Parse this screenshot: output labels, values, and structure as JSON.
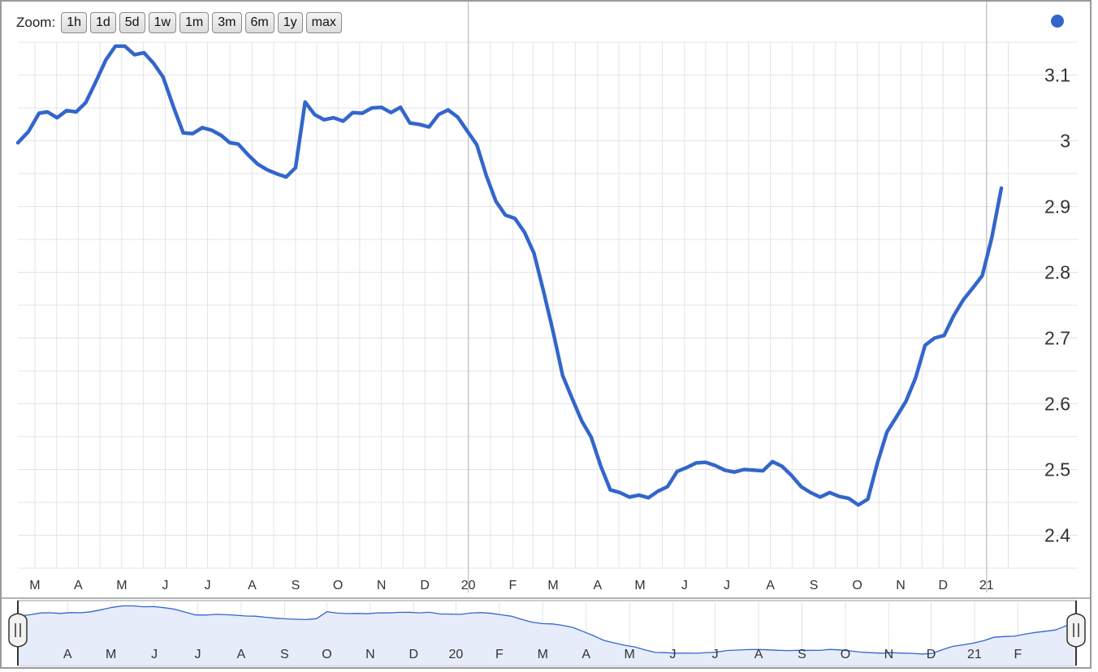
{
  "zoom": {
    "label": "Zoom:",
    "buttons": [
      "1h",
      "1d",
      "5d",
      "1w",
      "1m",
      "3m",
      "6m",
      "1y",
      "max"
    ]
  },
  "colors": {
    "line": "#3366cc",
    "grid": "#e4e4e4",
    "nav_fill": "#e6ecfa",
    "border": "#9a9a9a"
  },
  "chart_data": {
    "type": "line",
    "ylim": [
      2.35,
      3.15
    ],
    "yticks": [
      3.1,
      3,
      2.9,
      2.8,
      2.7,
      2.6,
      2.5,
      2.4
    ],
    "ytick_labels": [
      "3.1",
      "3",
      "2.9",
      "2.8",
      "2.7",
      "2.6",
      "2.5",
      "2.4"
    ],
    "xticks": [
      {
        "label": "M",
        "t": 0.016
      },
      {
        "label": "A",
        "t": 0.057
      },
      {
        "label": "M",
        "t": 0.098
      },
      {
        "label": "J",
        "t": 0.139
      },
      {
        "label": "J",
        "t": 0.179
      },
      {
        "label": "A",
        "t": 0.221
      },
      {
        "label": "S",
        "t": 0.262
      },
      {
        "label": "O",
        "t": 0.302
      },
      {
        "label": "N",
        "t": 0.343
      },
      {
        "label": "D",
        "t": 0.384
      },
      {
        "label": "20",
        "t": 0.425
      },
      {
        "label": "F",
        "t": 0.467
      },
      {
        "label": "M",
        "t": 0.505
      },
      {
        "label": "A",
        "t": 0.547
      },
      {
        "label": "M",
        "t": 0.587
      },
      {
        "label": "J",
        "t": 0.629
      },
      {
        "label": "J",
        "t": 0.669
      },
      {
        "label": "A",
        "t": 0.71
      },
      {
        "label": "S",
        "t": 0.751
      },
      {
        "label": "O",
        "t": 0.792
      },
      {
        "label": "N",
        "t": 0.833
      },
      {
        "label": "D",
        "t": 0.873
      },
      {
        "label": "21",
        "t": 0.914
      }
    ],
    "series": [
      {
        "values": [
          [
            0.0,
            2.997
          ],
          [
            0.01,
            3.014
          ],
          [
            0.02,
            3.042
          ],
          [
            0.028,
            3.044
          ],
          [
            0.037,
            3.035
          ],
          [
            0.046,
            3.046
          ],
          [
            0.055,
            3.044
          ],
          [
            0.064,
            3.058
          ],
          [
            0.073,
            3.088
          ],
          [
            0.083,
            3.123
          ],
          [
            0.092,
            3.144
          ],
          [
            0.101,
            3.144
          ],
          [
            0.11,
            3.131
          ],
          [
            0.119,
            3.134
          ],
          [
            0.128,
            3.118
          ],
          [
            0.137,
            3.097
          ],
          [
            0.147,
            3.051
          ],
          [
            0.156,
            3.012
          ],
          [
            0.165,
            3.011
          ],
          [
            0.174,
            3.02
          ],
          [
            0.183,
            3.016
          ],
          [
            0.192,
            3.008
          ],
          [
            0.2,
            2.997
          ],
          [
            0.208,
            2.995
          ],
          [
            0.217,
            2.979
          ],
          [
            0.226,
            2.965
          ],
          [
            0.235,
            2.956
          ],
          [
            0.244,
            2.95
          ],
          [
            0.253,
            2.945
          ],
          [
            0.262,
            2.959
          ],
          [
            0.271,
            3.059
          ],
          [
            0.28,
            3.04
          ],
          [
            0.289,
            3.032
          ],
          [
            0.298,
            3.035
          ],
          [
            0.307,
            3.03
          ],
          [
            0.316,
            3.043
          ],
          [
            0.325,
            3.042
          ],
          [
            0.334,
            3.05
          ],
          [
            0.343,
            3.051
          ],
          [
            0.352,
            3.043
          ],
          [
            0.361,
            3.051
          ],
          [
            0.37,
            3.027
          ],
          [
            0.379,
            3.025
          ],
          [
            0.388,
            3.021
          ],
          [
            0.397,
            3.04
          ],
          [
            0.406,
            3.047
          ],
          [
            0.415,
            3.036
          ],
          [
            0.424,
            3.015
          ],
          [
            0.433,
            2.994
          ],
          [
            0.442,
            2.947
          ],
          [
            0.451,
            2.908
          ],
          [
            0.46,
            2.887
          ],
          [
            0.469,
            2.882
          ],
          [
            0.478,
            2.861
          ],
          [
            0.487,
            2.829
          ],
          [
            0.496,
            2.771
          ],
          [
            0.505,
            2.71
          ],
          [
            0.514,
            2.643
          ],
          [
            0.523,
            2.608
          ],
          [
            0.532,
            2.574
          ],
          [
            0.541,
            2.549
          ],
          [
            0.55,
            2.505
          ],
          [
            0.559,
            2.469
          ],
          [
            0.568,
            2.465
          ],
          [
            0.577,
            2.458
          ],
          [
            0.586,
            2.461
          ],
          [
            0.595,
            2.457
          ],
          [
            0.604,
            2.467
          ],
          [
            0.613,
            2.474
          ],
          [
            0.622,
            2.497
          ],
          [
            0.631,
            2.503
          ],
          [
            0.64,
            2.51
          ],
          [
            0.649,
            2.511
          ],
          [
            0.658,
            2.506
          ],
          [
            0.667,
            2.499
          ],
          [
            0.676,
            2.496
          ],
          [
            0.685,
            2.5
          ],
          [
            0.694,
            2.499
          ],
          [
            0.703,
            2.498
          ],
          [
            0.712,
            2.512
          ],
          [
            0.721,
            2.505
          ],
          [
            0.73,
            2.491
          ],
          [
            0.739,
            2.474
          ],
          [
            0.748,
            2.465
          ],
          [
            0.757,
            2.458
          ],
          [
            0.766,
            2.465
          ],
          [
            0.775,
            2.459
          ],
          [
            0.784,
            2.456
          ],
          [
            0.793,
            2.446
          ],
          [
            0.802,
            2.455
          ],
          [
            0.811,
            2.51
          ],
          [
            0.82,
            2.557
          ],
          [
            0.829,
            2.58
          ],
          [
            0.838,
            2.604
          ],
          [
            0.847,
            2.639
          ],
          [
            0.856,
            2.689
          ],
          [
            0.865,
            2.7
          ],
          [
            0.874,
            2.704
          ],
          [
            0.883,
            2.734
          ],
          [
            0.892,
            2.758
          ],
          [
            0.901,
            2.776
          ],
          [
            0.91,
            2.795
          ],
          [
            0.919,
            2.853
          ],
          [
            0.928,
            2.928
          ]
        ]
      }
    ],
    "navigator": {
      "xticks": [
        {
          "label": "A",
          "t": 0.047
        },
        {
          "label": "M",
          "t": 0.088
        },
        {
          "label": "J",
          "t": 0.129
        },
        {
          "label": "J",
          "t": 0.17
        },
        {
          "label": "A",
          "t": 0.211
        },
        {
          "label": "S",
          "t": 0.252
        },
        {
          "label": "O",
          "t": 0.292
        },
        {
          "label": "N",
          "t": 0.333
        },
        {
          "label": "D",
          "t": 0.374
        },
        {
          "label": "20",
          "t": 0.414
        },
        {
          "label": "F",
          "t": 0.455
        },
        {
          "label": "M",
          "t": 0.496
        },
        {
          "label": "A",
          "t": 0.537
        },
        {
          "label": "M",
          "t": 0.578
        },
        {
          "label": "J",
          "t": 0.619
        },
        {
          "label": "J",
          "t": 0.659
        },
        {
          "label": "A",
          "t": 0.7
        },
        {
          "label": "S",
          "t": 0.741
        },
        {
          "label": "O",
          "t": 0.782
        },
        {
          "label": "N",
          "t": 0.823
        },
        {
          "label": "D",
          "t": 0.863
        },
        {
          "label": "21",
          "t": 0.904
        },
        {
          "label": "F",
          "t": 0.945
        }
      ]
    }
  }
}
